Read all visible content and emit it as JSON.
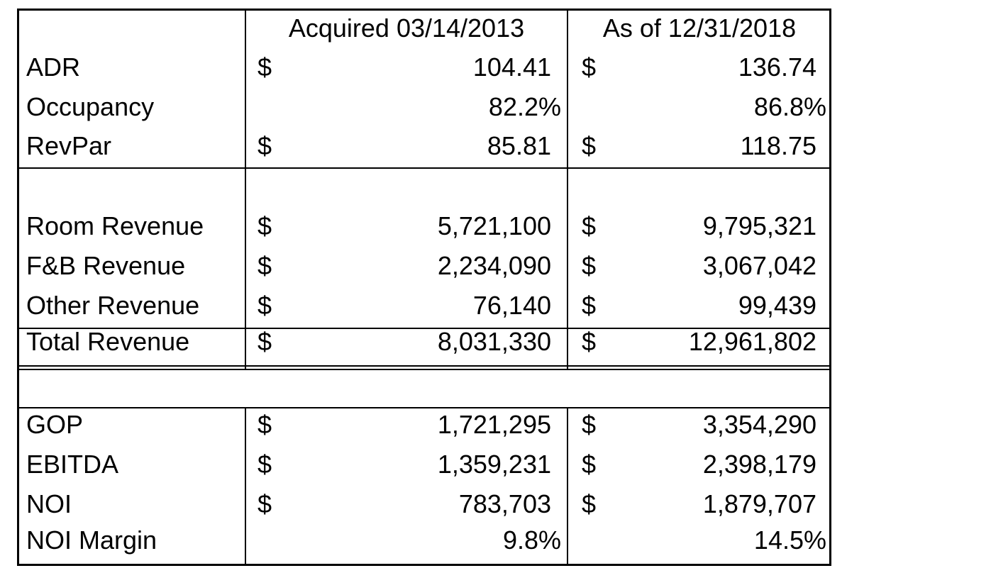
{
  "table": {
    "headers": [
      "Acquired 03/14/2013",
      "As of 12/31/2018"
    ],
    "rows": [
      {
        "label": "ADR",
        "acq_sym": "$",
        "acq_val": "104.41",
        "cur_sym": "$",
        "cur_val": "136.74"
      },
      {
        "label": "Occupancy",
        "acq_sym": "",
        "acq_val": "82.2%",
        "cur_sym": "",
        "cur_val": "86.8%"
      },
      {
        "label": "RevPar",
        "acq_sym": "$",
        "acq_val": "85.81",
        "cur_sym": "$",
        "cur_val": "118.75"
      },
      {
        "label": "Room Revenue",
        "acq_sym": "$",
        "acq_val": "5,721,100",
        "cur_sym": "$",
        "cur_val": "9,795,321"
      },
      {
        "label": "F&B Revenue",
        "acq_sym": "$",
        "acq_val": "2,234,090",
        "cur_sym": "$",
        "cur_val": "3,067,042"
      },
      {
        "label": "Other Revenue",
        "acq_sym": "$",
        "acq_val": "76,140",
        "cur_sym": "$",
        "cur_val": "99,439"
      },
      {
        "label": "Total Revenue",
        "acq_sym": "$",
        "acq_val": "8,031,330",
        "cur_sym": "$",
        "cur_val": "12,961,802"
      },
      {
        "label": "GOP",
        "acq_sym": "$",
        "acq_val": "1,721,295",
        "cur_sym": "$",
        "cur_val": "3,354,290"
      },
      {
        "label": "EBITDA",
        "acq_sym": "$",
        "acq_val": "1,359,231",
        "cur_sym": "$",
        "cur_val": "2,398,179"
      },
      {
        "label": "NOI",
        "acq_sym": "$",
        "acq_val": "783,703",
        "cur_sym": "$",
        "cur_val": "1,879,707"
      },
      {
        "label": "NOI Margin",
        "acq_sym": "",
        "acq_val": "9.8%",
        "cur_sym": "",
        "cur_val": "14.5%"
      }
    ]
  }
}
